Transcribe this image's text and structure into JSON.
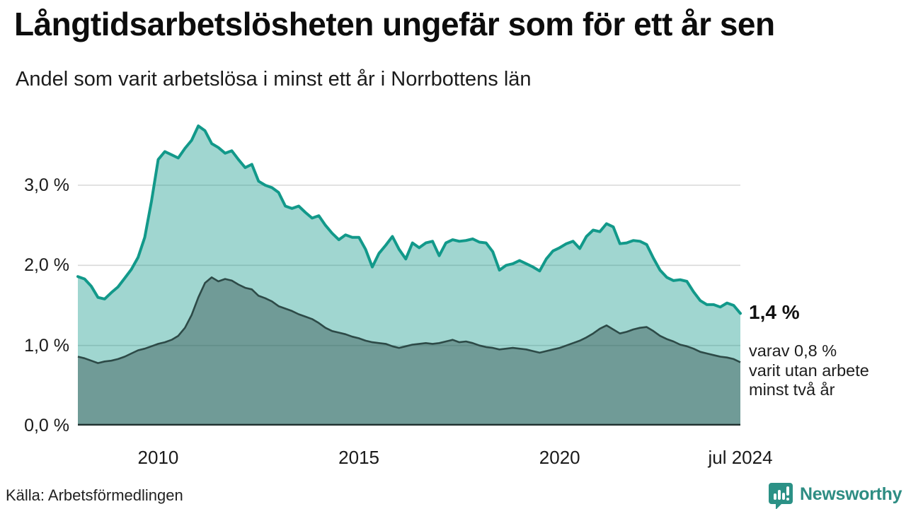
{
  "header": {
    "title": "Långtidsarbetslösheten ungefär som för ett år sen",
    "subtitle": "Andel som varit arbetslösa i minst ett år i Norrbottens län"
  },
  "annotations": {
    "latest_value": "1,4 %",
    "note_lines": [
      "varav 0,8 %",
      "varit utan arbete",
      "minst två år"
    ]
  },
  "footer": {
    "source": "Källa: Arbetsförmedlingen",
    "brand": "Newsworthy"
  },
  "colors": {
    "line_1yr": "#12998a",
    "fill_1yr": "rgba(18,153,138,0.40)",
    "line_2yr": "#2d4a47",
    "fill_2yr": "rgba(45,74,71,0.42)",
    "gridline": "#d9d9d9",
    "axis_baseline": "#20302e",
    "brand_teal": "#2e8d83"
  },
  "chart_data": {
    "type": "area",
    "title": "Långtidsarbetslösheten ungefär som för ett år sen",
    "subtitle": "Andel som varit arbetslösa i minst ett år i Norrbottens län",
    "unit": "%",
    "x_start": 2008.0,
    "x_step": 0.1666667,
    "xlim": [
      2008.0,
      2024.5
    ],
    "ylim": [
      0,
      3.9
    ],
    "grid": "horizontal",
    "legend": "none",
    "yticks": [
      {
        "value": 0,
        "label": "0,0 %"
      },
      {
        "value": 1,
        "label": "1,0 %"
      },
      {
        "value": 2,
        "label": "2,0 %"
      },
      {
        "value": 3,
        "label": "3,0 %"
      }
    ],
    "xticks": [
      {
        "value": 2010,
        "label": "2010"
      },
      {
        "value": 2015,
        "label": "2015"
      },
      {
        "value": 2020,
        "label": "2020"
      },
      {
        "value": 2024.5,
        "label": "jul 2024"
      }
    ],
    "series": [
      {
        "name": "Arbetslösa minst ett år",
        "latest_label": "1,4 %",
        "values": [
          1.86,
          1.83,
          1.74,
          1.6,
          1.58,
          1.66,
          1.73,
          1.84,
          1.95,
          2.1,
          2.35,
          2.8,
          3.32,
          3.42,
          3.38,
          3.34,
          3.46,
          3.56,
          3.74,
          3.68,
          3.52,
          3.47,
          3.4,
          3.43,
          3.32,
          3.22,
          3.26,
          3.05,
          3.0,
          2.97,
          2.91,
          2.74,
          2.71,
          2.74,
          2.66,
          2.59,
          2.62,
          2.5,
          2.4,
          2.32,
          2.38,
          2.35,
          2.35,
          2.2,
          1.98,
          2.15,
          2.25,
          2.36,
          2.2,
          2.08,
          2.28,
          2.22,
          2.28,
          2.3,
          2.12,
          2.28,
          2.32,
          2.3,
          2.31,
          2.33,
          2.29,
          2.28,
          2.17,
          1.94,
          2.0,
          2.02,
          2.06,
          2.02,
          1.98,
          1.93,
          2.08,
          2.18,
          2.22,
          2.27,
          2.3,
          2.21,
          2.36,
          2.44,
          2.42,
          2.52,
          2.48,
          2.27,
          2.28,
          2.31,
          2.3,
          2.26,
          2.09,
          1.94,
          1.85,
          1.81,
          1.82,
          1.8,
          1.67,
          1.56,
          1.51,
          1.51,
          1.48,
          1.53,
          1.5,
          1.4
        ]
      },
      {
        "name": "varav arbetslösa minst två år",
        "latest_label": "0,8 %",
        "values": [
          0.86,
          0.84,
          0.81,
          0.78,
          0.8,
          0.81,
          0.83,
          0.86,
          0.9,
          0.94,
          0.96,
          0.99,
          1.02,
          1.04,
          1.07,
          1.12,
          1.22,
          1.38,
          1.6,
          1.78,
          1.85,
          1.8,
          1.83,
          1.81,
          1.76,
          1.72,
          1.7,
          1.62,
          1.59,
          1.55,
          1.49,
          1.46,
          1.43,
          1.39,
          1.36,
          1.33,
          1.28,
          1.22,
          1.18,
          1.16,
          1.14,
          1.11,
          1.09,
          1.06,
          1.04,
          1.03,
          1.02,
          0.99,
          0.97,
          0.99,
          1.01,
          1.02,
          1.03,
          1.02,
          1.03,
          1.05,
          1.07,
          1.04,
          1.05,
          1.03,
          1.0,
          0.98,
          0.97,
          0.95,
          0.96,
          0.97,
          0.96,
          0.95,
          0.93,
          0.91,
          0.93,
          0.95,
          0.97,
          1.0,
          1.03,
          1.06,
          1.1,
          1.15,
          1.21,
          1.25,
          1.2,
          1.15,
          1.17,
          1.2,
          1.22,
          1.23,
          1.18,
          1.12,
          1.08,
          1.05,
          1.01,
          0.99,
          0.96,
          0.92,
          0.9,
          0.88,
          0.86,
          0.85,
          0.83,
          0.79
        ]
      }
    ]
  }
}
